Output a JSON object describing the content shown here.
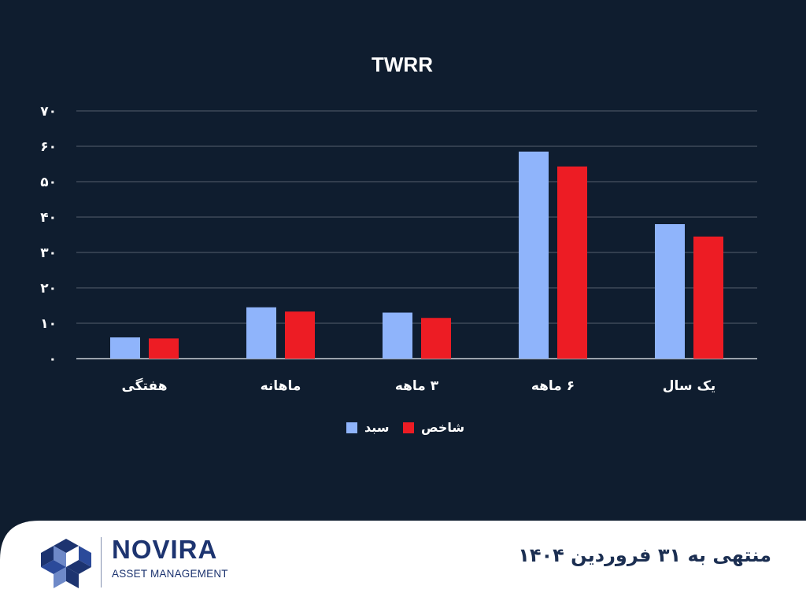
{
  "chart_data": {
    "type": "bar",
    "title": "TWRR",
    "xlabel": "",
    "ylabel": "",
    "ylim": [
      0,
      70
    ],
    "yticks": [
      0,
      10,
      20,
      30,
      40,
      50,
      60,
      70
    ],
    "ytick_labels": [
      "۰",
      "۱۰",
      "۲۰",
      "۳۰",
      "۴۰",
      "۵۰",
      "۶۰",
      "۷۰"
    ],
    "categories": [
      "هفتگی",
      "ماهانه",
      "۳ ماهه",
      "۶ ماهه",
      "یک سال"
    ],
    "series": [
      {
        "name": "سبد",
        "color": "#8fb4fb",
        "values": [
          6,
          14.5,
          13,
          58.5,
          38
        ]
      },
      {
        "name": "شاخص",
        "color": "#ed1c24",
        "values": [
          5.7,
          13.3,
          11.5,
          54.3,
          34.5
        ]
      }
    ],
    "grid": true,
    "legend_position": "bottom"
  },
  "footer": {
    "date_text": "منتهی به ۳۱ فروردین ۱۴۰۴",
    "brand_name": "NOVIRA",
    "brand_subtitle": "ASSET MANAGEMENT"
  },
  "colors": {
    "background": "#0f1d2f",
    "footer_background": "#ffffff",
    "brand": "#1d3470"
  }
}
